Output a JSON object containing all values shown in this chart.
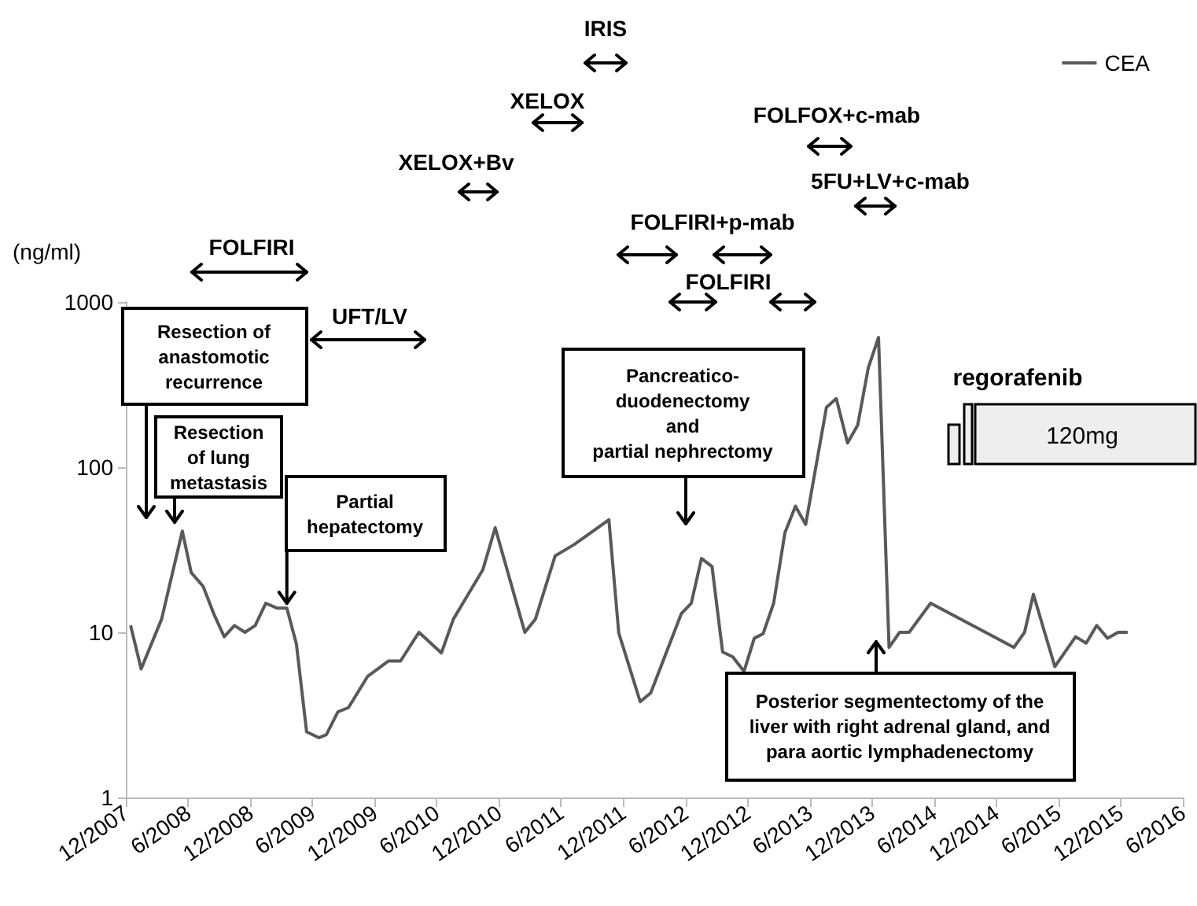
{
  "chart_data": {
    "type": "line",
    "ylabel": "(ng/ml)",
    "log": "y",
    "grid": false,
    "legend": "top right",
    "marker": "none",
    "line_style": "solid",
    "xlim": [
      "2007-12",
      "2016-06"
    ],
    "xticks": [
      {
        "value": "2007-12",
        "label": "12/2007"
      },
      {
        "value": "2008-06",
        "label": "6/2008"
      },
      {
        "value": "2008-12",
        "label": "12/2008"
      },
      {
        "value": "2009-06",
        "label": "6/2009"
      },
      {
        "value": "2009-12",
        "label": "12/2009"
      },
      {
        "value": "2010-06",
        "label": "6/2010"
      },
      {
        "value": "2010-12",
        "label": "12/2010"
      },
      {
        "value": "2011-06",
        "label": "6/2011"
      },
      {
        "value": "2011-12",
        "label": "12/2011"
      },
      {
        "value": "2012-06",
        "label": "6/2012"
      },
      {
        "value": "2012-12",
        "label": "12/2012"
      },
      {
        "value": "2013-06",
        "label": "6/2013"
      },
      {
        "value": "2013-12",
        "label": "12/2013"
      },
      {
        "value": "2014-06",
        "label": "6/2014"
      },
      {
        "value": "2014-12",
        "label": "12/2014"
      },
      {
        "value": "2015-06",
        "label": "6/2015"
      },
      {
        "value": "2015-12",
        "label": "12/2015"
      },
      {
        "value": "2016-06",
        "label": "6/2016"
      }
    ],
    "ylim": [
      1,
      1000
    ],
    "yticks": [
      1,
      10,
      100,
      1000
    ],
    "x": [
      "2007-12-15",
      "2008-01-15",
      "2008-03-15",
      "2008-05-15",
      "2008-06-10",
      "2008-07-15",
      "2008-08-15",
      "2008-09-15",
      "2008-10-15",
      "2008-11-15",
      "2008-12-15",
      "2009-01-15",
      "2009-02-18",
      "2009-03-18",
      "2009-04-15",
      "2009-05-15",
      "2009-06-20",
      "2009-07-12",
      "2009-08-15",
      "2009-09-15",
      "2009-11-10",
      "2010-01-10",
      "2010-02-15",
      "2010-04-10",
      "2010-06-15",
      "2010-07-20",
      "2010-10-15",
      "2010-11-20",
      "2011-02-15",
      "2011-03-18",
      "2011-05-15",
      "2011-07-10",
      "2011-10-20",
      "2011-11-18",
      "2012-01-20",
      "2012-02-20",
      "2012-05-20",
      "2012-06-18",
      "2012-07-18",
      "2012-08-18",
      "2012-09-18",
      "2012-10-18",
      "2012-11-20",
      "2012-12-20",
      "2013-01-15",
      "2013-02-15",
      "2013-03-20",
      "2013-04-20",
      "2013-05-20",
      "2013-07-20",
      "2013-08-18",
      "2013-09-20",
      "2013-10-20",
      "2013-11-20",
      "2013-12-20",
      "2014-01-20",
      "2014-02-20",
      "2014-03-20",
      "2014-05-22",
      "2015-01-22",
      "2015-02-22",
      "2015-03-20",
      "2015-04-22",
      "2015-05-22",
      "2015-07-22",
      "2015-08-22",
      "2015-09-22",
      "2015-10-24",
      "2015-11-24",
      "2015-12-22"
    ],
    "series": [
      {
        "name": "CEA",
        "color": "#595959",
        "values": [
          11,
          6,
          12,
          41,
          23,
          19,
          13,
          9.4,
          11,
          10,
          11,
          15,
          14,
          14,
          8.5,
          2.5,
          2.3,
          2.4,
          3.3,
          3.5,
          5.4,
          6.7,
          6.7,
          10,
          7.5,
          12,
          24,
          43,
          10,
          12,
          29,
          34,
          48,
          9.9,
          3.8,
          4.3,
          13,
          15,
          28,
          25,
          7.6,
          7.1,
          5.8,
          9.2,
          9.8,
          15,
          40,
          58,
          45,
          230,
          260,
          140,
          180,
          400,
          610,
          8.1,
          10,
          10,
          15,
          8.1,
          10,
          17,
          10,
          6.2,
          9.4,
          8.6,
          11,
          9.2,
          10,
          10
        ]
      }
    ],
    "annotations": [
      "IRIS",
      "XELOX",
      "XELOX+Bv",
      "FOLFOX+c-mab",
      "5FU+LV+c-mab",
      "FOLFIRI+p-mab",
      "FOLFIRI",
      "FOLFIRI",
      "UFT/LV",
      "Resection of\nanastomotic\nrecurrence",
      "Resection\nof lung\nmetastasis",
      {
        "text": "Partial\nhepatectomy",
        "x": "2009-03-18",
        "y": 15
      },
      "Pancreatico-\nduodenectomy\nand\npartial nephrectomy",
      "Posterior segmentectomy of the\nliver with right adrenal gland, and\npara aortic lymphadenectomy",
      "regorafenib",
      "120mg"
    ]
  }
}
